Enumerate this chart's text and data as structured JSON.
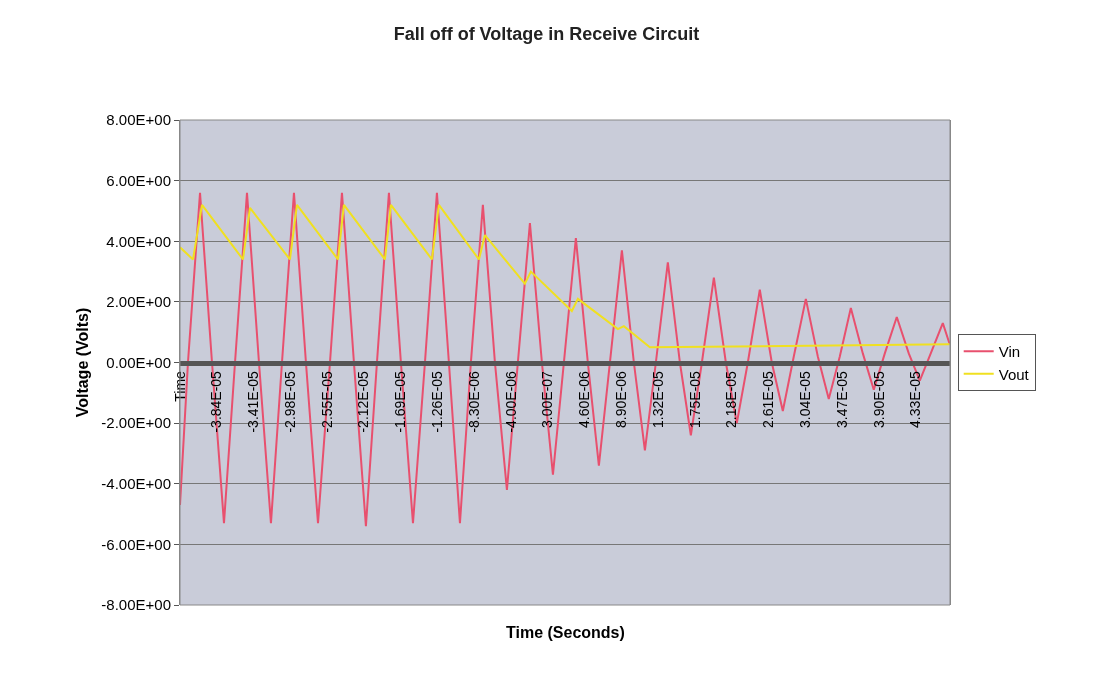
{
  "chart_data": {
    "type": "line",
    "title": "Fall off of Voltage in Receive Circuit",
    "xlabel": "Time (Seconds)",
    "ylabel": "Voltage (Volts)",
    "xlim": [
      -4.27e-05,
      4.73e-05
    ],
    "xticks": [
      {
        "value": -4.27e-05,
        "label": "Time"
      },
      {
        "value": -3.84e-05,
        "label": "-3.84E-05"
      },
      {
        "value": -3.41e-05,
        "label": "-3.41E-05"
      },
      {
        "value": -2.98e-05,
        "label": "-2.98E-05"
      },
      {
        "value": -2.55e-05,
        "label": "-2.55E-05"
      },
      {
        "value": -2.12e-05,
        "label": "-2.12E-05"
      },
      {
        "value": -1.69e-05,
        "label": "-1.69E-05"
      },
      {
        "value": -1.26e-05,
        "label": "-1.26E-05"
      },
      {
        "value": -8.3e-06,
        "label": "-8.30E-06"
      },
      {
        "value": -4e-06,
        "label": "-4.00E-06"
      },
      {
        "value": 3e-07,
        "label": "3.00E-07"
      },
      {
        "value": 4.6e-06,
        "label": "4.60E-06"
      },
      {
        "value": 8.9e-06,
        "label": "8.90E-06"
      },
      {
        "value": 1.32e-05,
        "label": "1.32E-05"
      },
      {
        "value": 1.75e-05,
        "label": "1.75E-05"
      },
      {
        "value": 2.18e-05,
        "label": "2.18E-05"
      },
      {
        "value": 2.61e-05,
        "label": "2.61E-05"
      },
      {
        "value": 3.04e-05,
        "label": "3.04E-05"
      },
      {
        "value": 3.47e-05,
        "label": "3.47E-05"
      },
      {
        "value": 3.9e-05,
        "label": "3.90E-05"
      },
      {
        "value": 4.33e-05,
        "label": "4.33E-05"
      }
    ],
    "ylim": [
      -8,
      8
    ],
    "yticks": [
      {
        "value": -8,
        "label": "-8.00E+00"
      },
      {
        "value": -6,
        "label": "-6.00E+00"
      },
      {
        "value": -4,
        "label": "-4.00E+00"
      },
      {
        "value": -2,
        "label": "-2.00E+00"
      },
      {
        "value": 0,
        "label": "0.00E+00"
      },
      {
        "value": 2,
        "label": "2.00E+00"
      },
      {
        "value": 4,
        "label": "4.00E+00"
      },
      {
        "value": 6,
        "label": "6.00E+00"
      },
      {
        "value": 8,
        "label": "8.00E+00"
      }
    ],
    "grid": "y",
    "legend": "right",
    "marker": "none",
    "line_style": "solid",
    "series": [
      {
        "name": "Vin",
        "color": "#e8506e",
        "x": [
          -4.27e-05,
          -4.177e-05,
          -4.036e-05,
          -3.896e-05,
          -3.756e-05,
          -3.627e-05,
          -3.487e-05,
          -3.347e-05,
          -3.207e-05,
          -3.078e-05,
          -2.938e-05,
          -2.798e-05,
          -2.657e-05,
          -2.517e-05,
          -2.377e-05,
          -2.237e-05,
          -2.097e-05,
          -1.968e-05,
          -1.828e-05,
          -1.688e-05,
          -1.547e-05,
          -1.407e-05,
          -1.267e-05,
          -1.127e-05,
          -9.98e-06,
          -8.7e-06,
          -7.3e-06,
          -5.89e-06,
          -4.49e-06,
          -3.21e-06,
          -1.8e-06,
          -4e-07,
          8.9e-07,
          2.17e-06,
          3.57e-06,
          4.97e-06,
          6.26e-06,
          7.55e-06,
          8.95e-06,
          1.035e-05,
          1.164e-05,
          1.292e-05,
          1.432e-05,
          1.573e-05,
          1.701e-05,
          1.83e-05,
          1.97e-05,
          2.11e-05,
          2.238e-05,
          2.367e-05,
          2.507e-05,
          2.647e-05,
          2.776e-05,
          2.904e-05,
          3.045e-05,
          3.185e-05,
          3.313e-05,
          3.442e-05,
          3.571e-05,
          3.711e-05,
          3.839e-05,
          3.968e-05,
          4.108e-05,
          4.248e-05,
          4.377e-05,
          4.505e-05,
          4.646e-05,
          4.727e-05
        ],
        "values": [
          -4.7,
          0,
          5.6,
          0,
          -5.3,
          0,
          5.6,
          0,
          -5.3,
          0,
          5.6,
          0,
          -5.3,
          0,
          5.6,
          0,
          -5.4,
          0,
          5.6,
          0,
          -5.3,
          0,
          5.6,
          0,
          -5.3,
          0,
          5.2,
          0,
          -4.2,
          0,
          4.6,
          0,
          -3.7,
          0,
          4.1,
          0,
          -3.4,
          0,
          3.7,
          0,
          -2.9,
          0,
          3.3,
          0,
          -2.4,
          0,
          2.8,
          0,
          -2.0,
          0,
          2.4,
          0,
          -1.6,
          0.2,
          2.1,
          0.2,
          -1.2,
          0.2,
          1.8,
          0.3,
          -0.9,
          0.3,
          1.5,
          0.3,
          -0.6,
          0.3,
          1.3,
          0.6
        ]
      },
      {
        "name": "Vout",
        "color": "#f0e020",
        "x": [
          -4.27e-05,
          -4.118e-05,
          -4.013e-05,
          -3.534e-05,
          -3.452e-05,
          -2.985e-05,
          -2.903e-05,
          -2.424e-05,
          -2.354e-05,
          -1.875e-05,
          -1.805e-05,
          -1.325e-05,
          -1.244e-05,
          -7.76e-06,
          -7.06e-06,
          -2.39e-06,
          -1.69e-06,
          3.1e-06,
          3.81e-06,
          8.48e-06,
          9.18e-06,
          1.222e-05,
          4.727e-05
        ],
        "values": [
          3.8,
          3.4,
          5.2,
          3.4,
          5.1,
          3.4,
          5.2,
          3.4,
          5.2,
          3.4,
          5.2,
          3.4,
          5.2,
          3.4,
          4.2,
          2.6,
          3.0,
          1.7,
          2.1,
          1.1,
          1.2,
          0.5,
          0.6
        ]
      }
    ]
  }
}
